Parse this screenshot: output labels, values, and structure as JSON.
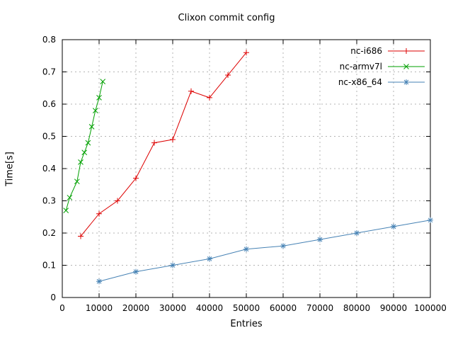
{
  "chart_data": {
    "type": "line",
    "title": "Clixon commit config",
    "xlabel": "Entries",
    "ylabel": "Time[s]",
    "xlim": [
      0,
      100000
    ],
    "ylim": [
      0,
      0.8
    ],
    "xtick": 10000,
    "ytick": 0.1,
    "grid": true,
    "legend_position": "top-right-inside",
    "background": "#ffffff",
    "border_color": "#000000",
    "grid_color": "#b4b4b4",
    "series": [
      {
        "name": "nc-i686",
        "color": "#dd0000",
        "marker": "plus",
        "points": [
          [
            5000,
            0.19
          ],
          [
            10000,
            0.26
          ],
          [
            15000,
            0.3
          ],
          [
            20000,
            0.37
          ],
          [
            25000,
            0.48
          ],
          [
            30000,
            0.49
          ],
          [
            35000,
            0.64
          ],
          [
            40000,
            0.62
          ],
          [
            45000,
            0.69
          ],
          [
            50000,
            0.76
          ]
        ]
      },
      {
        "name": "nc-armv7l",
        "color": "#00a000",
        "marker": "cross",
        "points": [
          [
            1000,
            0.27
          ],
          [
            2000,
            0.31
          ],
          [
            4000,
            0.36
          ],
          [
            5000,
            0.42
          ],
          [
            6000,
            0.45
          ],
          [
            7000,
            0.48
          ],
          [
            8000,
            0.53
          ],
          [
            9000,
            0.58
          ],
          [
            10000,
            0.62
          ],
          [
            11000,
            0.67
          ]
        ]
      },
      {
        "name": "nc-x86_64",
        "color": "#4682b4",
        "marker": "asterisk",
        "points": [
          [
            10000,
            0.05
          ],
          [
            20000,
            0.08
          ],
          [
            30000,
            0.1
          ],
          [
            40000,
            0.12
          ],
          [
            50000,
            0.15
          ],
          [
            60000,
            0.16
          ],
          [
            70000,
            0.18
          ],
          [
            80000,
            0.2
          ],
          [
            90000,
            0.22
          ],
          [
            100000,
            0.24
          ]
        ]
      }
    ]
  }
}
